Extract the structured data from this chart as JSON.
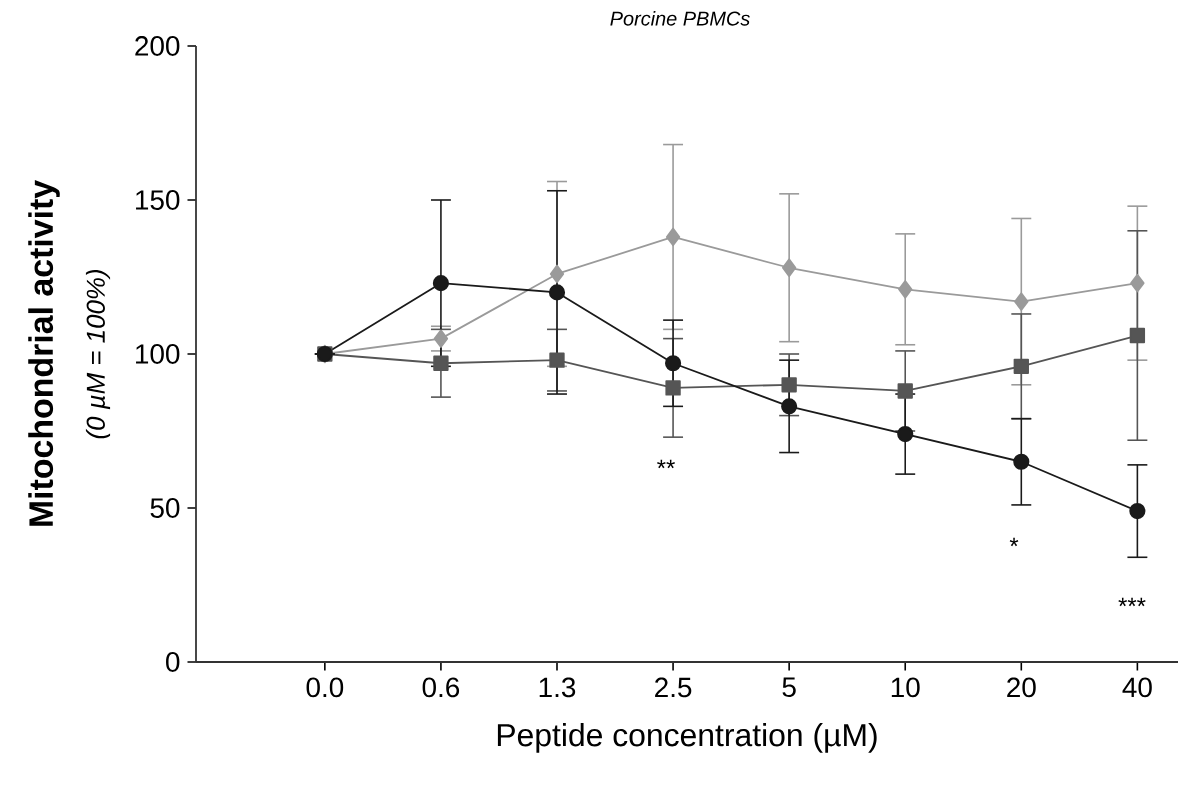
{
  "chart_data": {
    "type": "line",
    "title": "Porcine PBMCs",
    "xlabel": "Peptide concentration (µM)",
    "ylabel": "Mitochondrial activity",
    "categories": [
      "0.0",
      "0.6",
      "1.3",
      "2.5",
      "5",
      "10",
      "20",
      "40"
    ],
    "series": [
      {
        "color": "#9a9a9a",
        "marker": "diamond",
        "values": [
          100,
          105,
          126,
          138,
          128,
          121,
          117,
          123
        ],
        "errors": [
          null,
          4,
          30,
          30,
          24,
          18,
          27,
          25
        ]
      },
      {
        "color": "#555555",
        "marker": "square",
        "values": [
          100,
          97,
          98,
          89,
          90,
          88,
          96,
          106
        ],
        "errors": [
          null,
          11,
          10,
          16,
          10,
          13,
          17,
          34
        ]
      },
      {
        "color": "#1a1a1a",
        "marker": "circle",
        "values": [
          100,
          123,
          120,
          97,
          83,
          74,
          65,
          49
        ],
        "errors": [
          null,
          27,
          33,
          14,
          15,
          13,
          14,
          15
        ]
      }
    ],
    "ylim": [
      0,
      200
    ],
    "yticks": [
      0,
      50,
      100,
      150,
      200
    ],
    "grid": false,
    "annotations": [
      "(0 µM = 100%)",
      "**",
      "*",
      "***"
    ]
  }
}
